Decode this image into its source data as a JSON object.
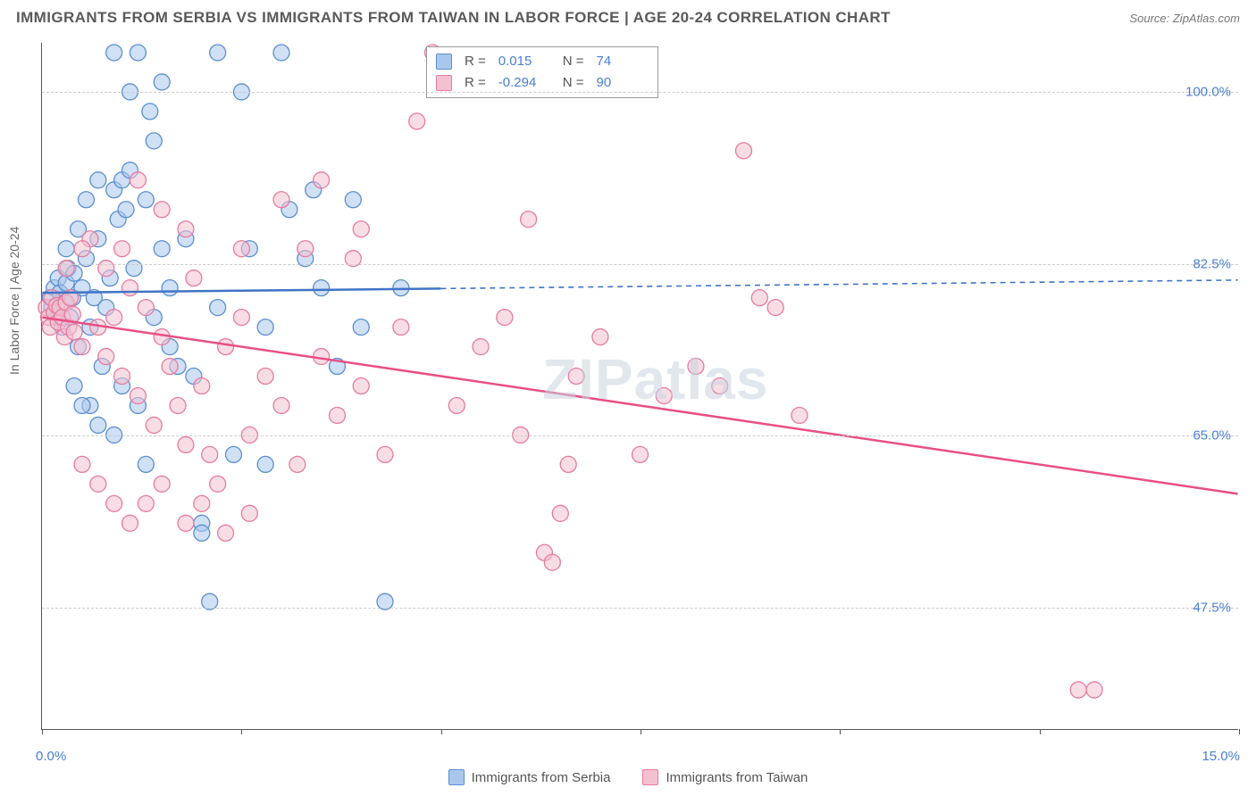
{
  "title": "IMMIGRANTS FROM SERBIA VS IMMIGRANTS FROM TAIWAN IN LABOR FORCE | AGE 20-24 CORRELATION CHART",
  "source": "Source: ZipAtlas.com",
  "watermark": "ZIPatlas",
  "ylabel": "In Labor Force | Age 20-24",
  "chart": {
    "type": "scatter",
    "xlim": [
      0.0,
      15.0
    ],
    "ylim": [
      35.0,
      105.0
    ],
    "x_end_labels": [
      "0.0%",
      "15.0%"
    ],
    "y_ticks": [
      47.5,
      65.0,
      82.5,
      100.0
    ],
    "y_tick_labels": [
      "47.5%",
      "65.0%",
      "82.5%",
      "100.0%"
    ],
    "x_tick_positions": [
      0,
      2.5,
      5.0,
      7.5,
      10.0,
      12.5,
      15.0
    ],
    "grid_color": "#cccccc",
    "background_color": "#ffffff",
    "marker_radius": 9,
    "marker_opacity": 0.55,
    "trend_line_width": 2.5,
    "series": [
      {
        "name": "Immigrants from Serbia",
        "color_fill": "#a9c7ec",
        "color_stroke": "#5b8fd1",
        "trend_color": "#3f74c7",
        "R": "0.015",
        "N": "74",
        "trend": {
          "x1": 0.0,
          "y1": 79.5,
          "x2": 15.0,
          "y2": 80.8,
          "solid_until_x": 5.0
        },
        "points": [
          [
            0.1,
            79
          ],
          [
            0.12,
            78
          ],
          [
            0.15,
            80
          ],
          [
            0.18,
            77
          ],
          [
            0.2,
            81
          ],
          [
            0.22,
            79.5
          ],
          [
            0.25,
            76
          ],
          [
            0.28,
            78.5
          ],
          [
            0.3,
            80.5
          ],
          [
            0.32,
            82
          ],
          [
            0.35,
            77
          ],
          [
            0.38,
            79
          ],
          [
            0.4,
            81.5
          ],
          [
            0.45,
            74
          ],
          [
            0.5,
            80
          ],
          [
            0.55,
            83
          ],
          [
            0.6,
            76
          ],
          [
            0.65,
            79
          ],
          [
            0.7,
            85
          ],
          [
            0.75,
            72
          ],
          [
            0.8,
            78
          ],
          [
            0.85,
            81
          ],
          [
            0.9,
            90
          ],
          [
            0.95,
            87
          ],
          [
            1.0,
            91
          ],
          [
            1.05,
            88
          ],
          [
            1.1,
            92
          ],
          [
            1.15,
            82
          ],
          [
            1.2,
            104
          ],
          [
            1.3,
            89
          ],
          [
            1.4,
            95
          ],
          [
            1.5,
            84
          ],
          [
            1.6,
            80
          ],
          [
            1.7,
            72
          ],
          [
            1.8,
            85
          ],
          [
            1.9,
            71
          ],
          [
            2.0,
            56
          ],
          [
            2.0,
            55
          ],
          [
            2.1,
            48
          ],
          [
            2.2,
            78
          ],
          [
            2.4,
            63
          ],
          [
            2.6,
            84
          ],
          [
            2.8,
            76
          ],
          [
            3.0,
            104
          ],
          [
            3.1,
            88
          ],
          [
            3.3,
            83
          ],
          [
            3.4,
            90
          ],
          [
            3.5,
            80
          ],
          [
            3.7,
            72
          ],
          [
            3.9,
            89
          ],
          [
            4.0,
            76
          ],
          [
            4.3,
            48
          ],
          [
            4.5,
            80
          ],
          [
            0.6,
            68
          ],
          [
            0.9,
            65
          ],
          [
            1.3,
            62
          ],
          [
            1.6,
            74
          ],
          [
            0.3,
            84
          ],
          [
            0.45,
            86
          ],
          [
            0.55,
            89
          ],
          [
            0.7,
            91
          ],
          [
            0.9,
            104
          ],
          [
            1.1,
            100
          ],
          [
            1.35,
            98
          ],
          [
            1.5,
            101
          ],
          [
            2.2,
            104
          ],
          [
            2.5,
            100
          ],
          [
            0.4,
            70
          ],
          [
            0.5,
            68
          ],
          [
            0.7,
            66
          ],
          [
            1.0,
            70
          ],
          [
            1.2,
            68
          ],
          [
            1.4,
            77
          ],
          [
            2.8,
            62
          ]
        ]
      },
      {
        "name": "Immigrants from Taiwan",
        "color_fill": "#f4c1d0",
        "color_stroke": "#e67ba0",
        "trend_color": "#e94f84",
        "R": "-0.294",
        "N": "90",
        "trend": {
          "x1": 0.0,
          "y1": 77.0,
          "x2": 15.0,
          "y2": 59.0,
          "solid_until_x": 15.0
        },
        "points": [
          [
            0.05,
            78
          ],
          [
            0.08,
            77
          ],
          [
            0.1,
            76
          ],
          [
            0.12,
            79
          ],
          [
            0.15,
            77.5
          ],
          [
            0.18,
            78.2
          ],
          [
            0.2,
            76.5
          ],
          [
            0.22,
            78
          ],
          [
            0.25,
            77
          ],
          [
            0.28,
            75
          ],
          [
            0.3,
            78.5
          ],
          [
            0.33,
            76
          ],
          [
            0.35,
            79
          ],
          [
            0.38,
            77.3
          ],
          [
            0.4,
            75.5
          ],
          [
            0.5,
            74
          ],
          [
            0.6,
            85
          ],
          [
            0.7,
            76
          ],
          [
            0.8,
            73
          ],
          [
            0.9,
            77
          ],
          [
            1.0,
            71
          ],
          [
            1.1,
            80
          ],
          [
            1.2,
            69
          ],
          [
            1.3,
            78
          ],
          [
            1.4,
            66
          ],
          [
            1.5,
            75
          ],
          [
            1.6,
            72
          ],
          [
            1.7,
            68
          ],
          [
            1.8,
            64
          ],
          [
            1.9,
            81
          ],
          [
            2.0,
            70
          ],
          [
            2.1,
            63
          ],
          [
            2.2,
            60
          ],
          [
            2.3,
            74
          ],
          [
            2.5,
            77
          ],
          [
            2.6,
            65
          ],
          [
            2.8,
            71
          ],
          [
            3.0,
            68
          ],
          [
            3.2,
            62
          ],
          [
            3.3,
            84
          ],
          [
            3.5,
            73
          ],
          [
            3.7,
            67
          ],
          [
            3.9,
            83
          ],
          [
            4.0,
            70
          ],
          [
            4.3,
            63
          ],
          [
            4.5,
            76
          ],
          [
            4.7,
            97
          ],
          [
            4.9,
            104
          ],
          [
            5.2,
            68
          ],
          [
            5.5,
            74
          ],
          [
            5.8,
            77
          ],
          [
            6.0,
            65
          ],
          [
            6.1,
            87
          ],
          [
            6.3,
            53
          ],
          [
            6.4,
            52
          ],
          [
            6.5,
            57
          ],
          [
            6.6,
            62
          ],
          [
            6.7,
            71
          ],
          [
            7.0,
            75
          ],
          [
            7.5,
            63
          ],
          [
            7.8,
            69
          ],
          [
            8.2,
            72
          ],
          [
            8.5,
            70
          ],
          [
            8.8,
            94
          ],
          [
            9.0,
            79
          ],
          [
            9.2,
            78
          ],
          [
            9.5,
            67
          ],
          [
            13.0,
            39
          ],
          [
            13.2,
            39
          ],
          [
            0.5,
            62
          ],
          [
            0.7,
            60
          ],
          [
            0.9,
            58
          ],
          [
            1.1,
            56
          ],
          [
            1.3,
            58
          ],
          [
            1.5,
            60
          ],
          [
            1.8,
            56
          ],
          [
            2.0,
            58
          ],
          [
            2.3,
            55
          ],
          [
            2.6,
            57
          ],
          [
            0.3,
            82
          ],
          [
            0.5,
            84
          ],
          [
            0.8,
            82
          ],
          [
            1.0,
            84
          ],
          [
            1.2,
            91
          ],
          [
            1.5,
            88
          ],
          [
            1.8,
            86
          ],
          [
            2.5,
            84
          ],
          [
            3.0,
            89
          ],
          [
            3.5,
            91
          ],
          [
            4.0,
            86
          ]
        ]
      }
    ]
  },
  "legend_box": {
    "rows": [
      {
        "swatch_fill": "#a9c7ec",
        "swatch_stroke": "#5b8fd1",
        "R_label": "R =",
        "R": "0.015",
        "N_label": "N =",
        "N": "74"
      },
      {
        "swatch_fill": "#f4c1d0",
        "swatch_stroke": "#e67ba0",
        "R_label": "R =",
        "R": "-0.294",
        "N_label": "N =",
        "N": "90"
      }
    ]
  },
  "footer_legend": [
    {
      "swatch_fill": "#a9c7ec",
      "swatch_stroke": "#5b8fd1",
      "label": "Immigrants from Serbia"
    },
    {
      "swatch_fill": "#f4c1d0",
      "swatch_stroke": "#e67ba0",
      "label": "Immigrants from Taiwan"
    }
  ]
}
